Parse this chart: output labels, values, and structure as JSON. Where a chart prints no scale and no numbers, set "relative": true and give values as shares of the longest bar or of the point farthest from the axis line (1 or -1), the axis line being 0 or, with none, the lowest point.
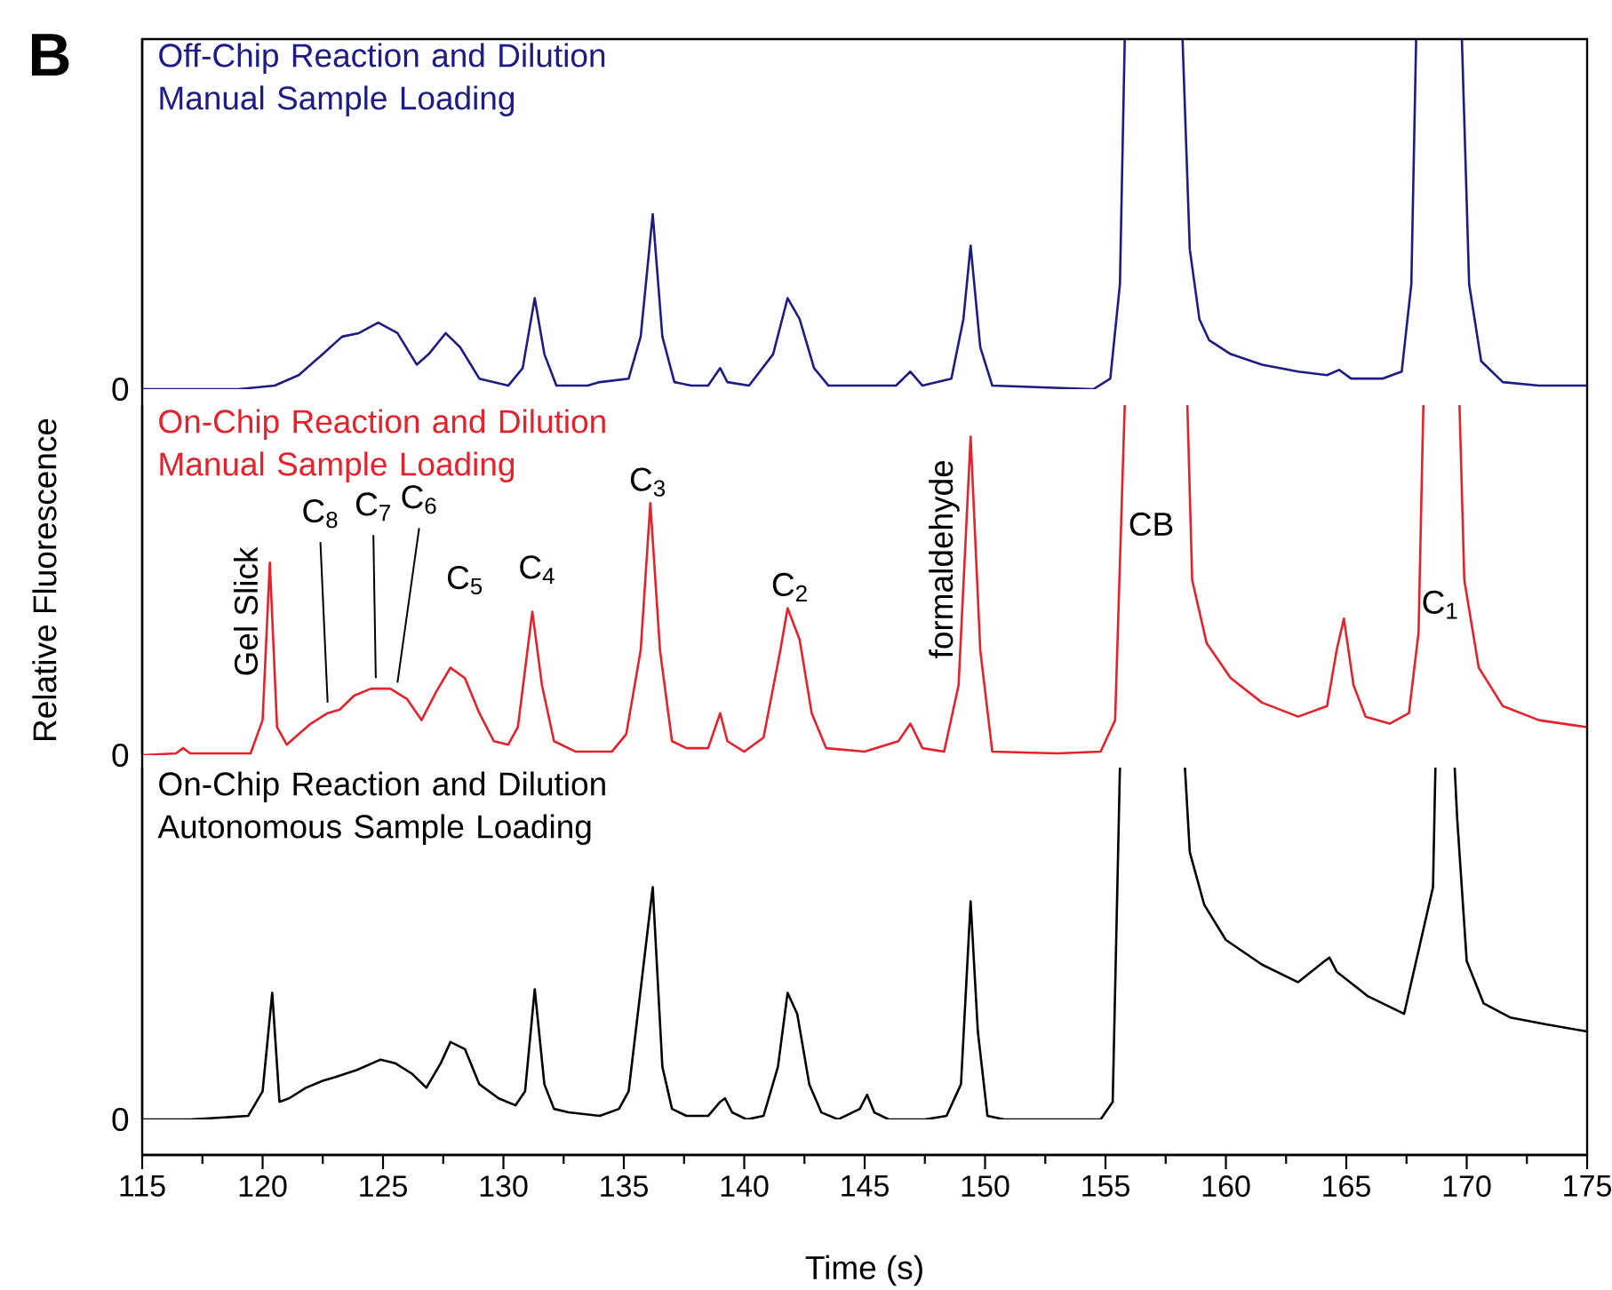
{
  "chart_data": [
    {
      "type": "line",
      "title": "B",
      "relative": true,
      "xlim": [
        115,
        175
      ],
      "annotations": [
        "0"
      ],
      "x": [
        115,
        119,
        120.5,
        121.5,
        122.5,
        123.3,
        124,
        124.8,
        125.6,
        126.4,
        126.9,
        127.6,
        128.2,
        129,
        130.2,
        130.8,
        131.3,
        131.7,
        132.2,
        133.5,
        134,
        135.2,
        135.7,
        136.2,
        136.6,
        137.1,
        137.8,
        138.5,
        139,
        139.3,
        140.2,
        141.2,
        141.8,
        142.3,
        142.9,
        143.5,
        146.3,
        146.9,
        147.4,
        148.6,
        149.1,
        149.4,
        149.8,
        150.3,
        154.5,
        155.2,
        155.6,
        155.8,
        157,
        158.2,
        158.5,
        158.9,
        159.3,
        160.2,
        161.5,
        163,
        164.2,
        164.7,
        165.2,
        166.5,
        167.3,
        167.7,
        167.9,
        169,
        169.8,
        170.1,
        170.6,
        171.5,
        173,
        175
      ],
      "series": [
        {
          "name": "Off-Chip Reaction and Dilution Manual Sample Loading",
          "color": "#1c1c84",
          "values": [
            0,
            0,
            0.01,
            0.04,
            0.1,
            0.15,
            0.16,
            0.19,
            0.16,
            0.07,
            0.1,
            0.16,
            0.12,
            0.03,
            0.01,
            0.06,
            0.26,
            0.1,
            0.01,
            0.01,
            0.02,
            0.03,
            0.15,
            0.5,
            0.15,
            0.02,
            0.01,
            0.01,
            0.06,
            0.02,
            0.01,
            0.1,
            0.26,
            0.2,
            0.06,
            0.01,
            0.01,
            0.05,
            0.01,
            0.03,
            0.2,
            0.41,
            0.12,
            0.01,
            0,
            0.03,
            0.3,
            1,
            null,
            1,
            0.4,
            0.2,
            0.14,
            0.1,
            0.07,
            0.05,
            0.04,
            0.055,
            0.03,
            0.03,
            0.05,
            0.3,
            1,
            null,
            1,
            0.3,
            0.08,
            0.02,
            0.01,
            0.01
          ]
        }
      ]
    },
    {
      "type": "line",
      "ylabel": "Relative Fluorescence",
      "relative": true,
      "xlim": [
        115,
        175
      ],
      "annotations": [
        "0",
        "Gel Slick",
        "C$_{8}$",
        "C$_{7}$",
        "C$_{6}$",
        "C$_{5}$",
        "C$_{4}$",
        "C$_{3}$",
        "C$_{2}$",
        "formaldehyde",
        "CB",
        "C$_{1}$"
      ],
      "x": [
        115,
        116.4,
        116.7,
        117,
        119.5,
        120,
        120.3,
        120.6,
        121,
        121.5,
        122,
        122.7,
        123.2,
        123.8,
        124.5,
        125.3,
        126,
        126.6,
        127.2,
        127.8,
        128.4,
        129,
        129.6,
        130.2,
        130.6,
        131.2,
        131.6,
        132.1,
        133,
        134.5,
        135.1,
        135.7,
        136.1,
        136.5,
        137,
        137.6,
        138.5,
        139,
        139.3,
        140,
        140.8,
        141.5,
        141.8,
        142.3,
        142.8,
        143.4,
        145,
        146.4,
        146.9,
        147.4,
        148.3,
        148.9,
        149.4,
        149.8,
        150.3,
        153,
        154.8,
        155.4,
        155.8,
        157,
        158.4,
        158.6,
        159.2,
        160.2,
        161.5,
        163,
        164.2,
        164.6,
        164.9,
        165.3,
        165.8,
        166.8,
        167.6,
        168,
        168.2,
        169,
        169.7,
        169.9,
        170.5,
        171.5,
        173,
        175
      ],
      "series": [
        {
          "name": "On-Chip Reaction and Dilution Manual Sample Loading",
          "color": "#e3222b",
          "values": [
            0,
            0.005,
            0.02,
            0.005,
            0.005,
            0.1,
            0.55,
            0.08,
            0.03,
            0.06,
            0.09,
            0.12,
            0.13,
            0.17,
            0.19,
            0.19,
            0.16,
            0.1,
            0.18,
            0.25,
            0.22,
            0.12,
            0.04,
            0.03,
            0.08,
            0.41,
            0.2,
            0.04,
            0.01,
            0.01,
            0.06,
            0.3,
            0.72,
            0.3,
            0.04,
            0.02,
            0.02,
            0.12,
            0.04,
            0.01,
            0.05,
            0.3,
            0.42,
            0.33,
            0.12,
            0.02,
            0.01,
            0.04,
            0.09,
            0.02,
            0.01,
            0.2,
            0.91,
            0.3,
            0.01,
            0.005,
            0.01,
            0.1,
            1,
            null,
            1,
            0.5,
            0.32,
            0.22,
            0.15,
            0.11,
            0.14,
            0.3,
            0.39,
            0.2,
            0.11,
            0.09,
            0.12,
            0.35,
            1,
            null,
            1,
            0.5,
            0.25,
            0.14,
            0.1,
            0.08
          ]
        }
      ]
    },
    {
      "type": "line",
      "xlabel": "Time (s)",
      "relative": true,
      "xlim": [
        115,
        175
      ],
      "xticks": [
        115,
        120,
        125,
        130,
        135,
        140,
        145,
        150,
        155,
        160,
        165,
        170,
        175
      ],
      "annotations": [
        "0"
      ],
      "x": [
        115,
        117,
        119.4,
        120,
        120.4,
        120.7,
        121.1,
        121.8,
        122.5,
        123,
        123.9,
        124.9,
        125.5,
        126.2,
        126.8,
        127.4,
        127.8,
        128.4,
        129,
        129.8,
        130.5,
        130.9,
        131.3,
        131.7,
        132.1,
        132.7,
        134,
        134.8,
        135.2,
        136.2,
        136.6,
        137,
        137.6,
        138.5,
        139,
        139.2,
        139.5,
        140.1,
        140.8,
        141.4,
        141.8,
        142.2,
        142.7,
        143.2,
        143.9,
        144.5,
        144.8,
        145.1,
        145.4,
        146,
        147.5,
        148.4,
        149,
        149.4,
        149.7,
        150.1,
        150.8,
        153.4,
        154.8,
        155.3,
        155.6,
        157,
        158.3,
        158.5,
        159.1,
        160,
        161.5,
        163,
        164.1,
        164.3,
        164.6,
        165.9,
        167.4,
        168.6,
        168.7,
        169,
        169.5,
        169.6,
        170,
        170.7,
        171.8,
        173.3,
        175
      ],
      "series": [
        {
          "name": "On-Chip Reaction and Dilution Autonomous Sample Loading",
          "color": "#000000",
          "values": [
            0,
            0,
            0.01,
            0.08,
            0.36,
            0.05,
            0.06,
            0.09,
            0.11,
            0.12,
            0.14,
            0.17,
            0.16,
            0.13,
            0.09,
            0.16,
            0.22,
            0.2,
            0.1,
            0.06,
            0.04,
            0.08,
            0.37,
            0.1,
            0.03,
            0.02,
            0.01,
            0.03,
            0.08,
            0.66,
            0.15,
            0.03,
            0.01,
            0.01,
            0.05,
            0.06,
            0.02,
            0,
            0.01,
            0.15,
            0.36,
            0.3,
            0.1,
            0.02,
            0,
            0.02,
            0.03,
            0.07,
            0.02,
            0,
            0,
            0.01,
            0.1,
            0.62,
            0.25,
            0.01,
            0,
            0,
            0,
            0.05,
            1,
            null,
            1,
            0.76,
            0.61,
            0.51,
            0.44,
            0.39,
            0.45,
            0.46,
            0.42,
            0.35,
            0.3,
            0.66,
            1,
            null,
            1,
            0.86,
            0.45,
            0.33,
            0.29,
            0.27,
            0.25
          ]
        }
      ]
    }
  ]
}
